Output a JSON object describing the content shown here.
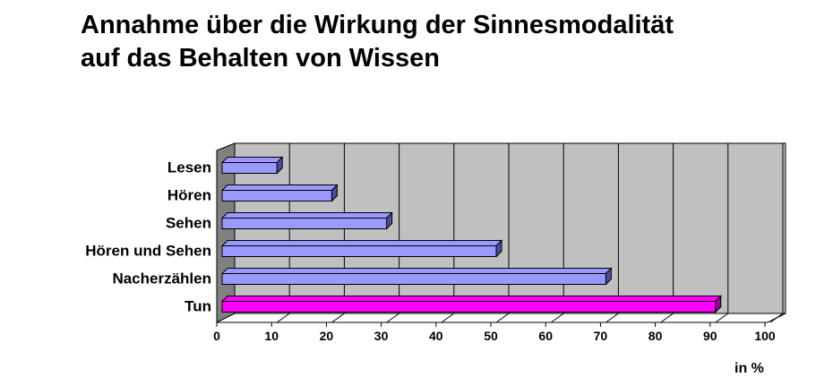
{
  "title_lines": [
    "Annahme über die Wirkung der Sinnesmodalität",
    "auf das Behalten von Wissen"
  ],
  "unit_label": "in %",
  "colors": {
    "bar_default": "#9999ff",
    "bar_highlight": "#ff00ff",
    "plot_background": "#c0c0c0"
  },
  "chart_data": {
    "type": "bar",
    "orientation": "horizontal",
    "style": "3d",
    "categories": [
      "Lesen",
      "Hören",
      "Sehen",
      "Hören und Sehen",
      "Nacherzählen",
      "Tun"
    ],
    "values": [
      10,
      20,
      30,
      50,
      70,
      90
    ],
    "highlight_category": "Tun",
    "xlim": [
      0,
      100
    ],
    "x_ticks": [
      0,
      10,
      20,
      30,
      40,
      50,
      60,
      70,
      80,
      90,
      100
    ],
    "xlabel": "in %",
    "grid": "vertical"
  }
}
